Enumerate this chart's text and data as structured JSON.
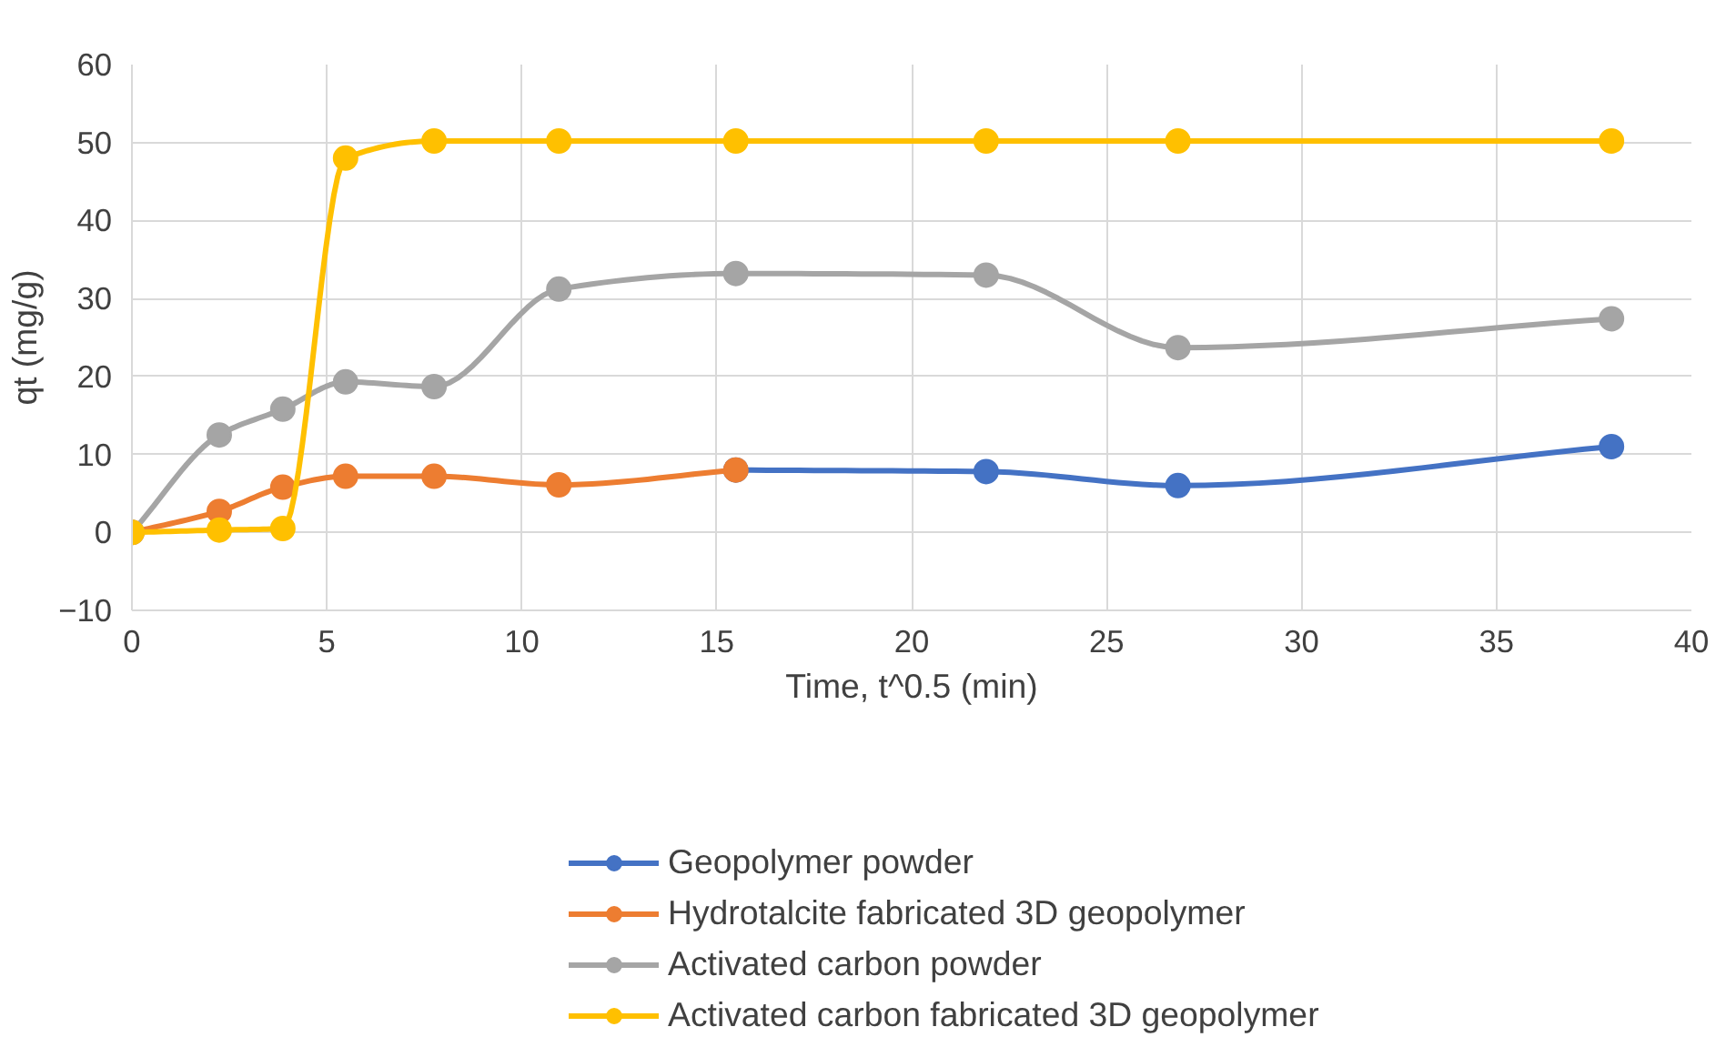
{
  "chart_data": {
    "type": "line",
    "xlabel": "Time, t^0.5 (min)",
    "ylabel": "qt (mg/g)",
    "x": [
      0,
      2.24,
      3.87,
      5.48,
      7.75,
      10.95,
      15.49,
      21.91,
      26.83,
      37.95
    ],
    "series": [
      {
        "name": "Geopolymer powder",
        "color": "#4472c4",
        "values": [
          null,
          null,
          null,
          null,
          null,
          null,
          8.0,
          7.8,
          6.0,
          11.0
        ]
      },
      {
        "name": "Hydrotalcite fabricated 3D geopolymer",
        "color": "#ed7d31",
        "values": [
          0,
          2.7,
          5.8,
          7.2,
          7.2,
          6.1,
          8.0,
          null,
          null,
          null
        ]
      },
      {
        "name": "Activated carbon powder",
        "color": "#a5a5a5",
        "values": [
          0,
          12.5,
          15.8,
          19.3,
          18.7,
          31.2,
          33.2,
          33.0,
          23.7,
          27.4
        ]
      },
      {
        "name": "Activated carbon fabricated 3D geopolymer",
        "color": "#ffc000",
        "values": [
          0,
          0.3,
          0.5,
          48,
          50.2,
          50.2,
          50.2,
          50.2,
          50.2,
          50.2
        ]
      }
    ],
    "xlim": [
      0,
      40
    ],
    "ylim": [
      -10,
      60
    ],
    "xticks": [
      0,
      5,
      10,
      15,
      20,
      25,
      30,
      35,
      40
    ],
    "yticks": [
      -10,
      0,
      10,
      20,
      30,
      40,
      50,
      60
    ],
    "grid": true,
    "legend": "bottom",
    "marker": "circle",
    "line_style": "solid"
  }
}
